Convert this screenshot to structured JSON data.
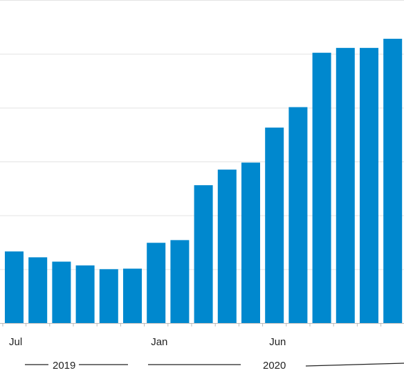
{
  "chart_data": {
    "type": "bar",
    "categories": [
      "Jul 2019",
      "Aug 2019",
      "Sep 2019",
      "Oct 2019",
      "Nov 2019",
      "Dec 2019",
      "Jan 2020",
      "Feb 2020",
      "Mar 2020",
      "Apr 2020",
      "May 2020",
      "Jun 2020",
      "Jul 2020",
      "Aug 2020",
      "Sep 2020",
      "Oct 2020",
      "Nov 2020"
    ],
    "values": [
      13.3,
      12.2,
      11.4,
      10.7,
      10.0,
      10.1,
      14.9,
      15.4,
      25.6,
      28.5,
      29.8,
      36.3,
      40.1,
      50.2,
      51.1,
      51.1,
      52.8
    ],
    "ylim": [
      0,
      60
    ],
    "gridlines": [
      10,
      20,
      30,
      40,
      50,
      60
    ],
    "grid": true,
    "bar_color": "#0088CE",
    "x_tick_labels": [
      {
        "index": 0,
        "label": "Jul"
      },
      {
        "index": 6,
        "label": "Jan"
      },
      {
        "index": 11,
        "label": "Jun"
      }
    ],
    "year_labels": [
      {
        "label": "2019",
        "start_index": 0,
        "end_index": 5
      },
      {
        "label": "2020",
        "start_index": 6,
        "end_index": 16
      }
    ]
  }
}
